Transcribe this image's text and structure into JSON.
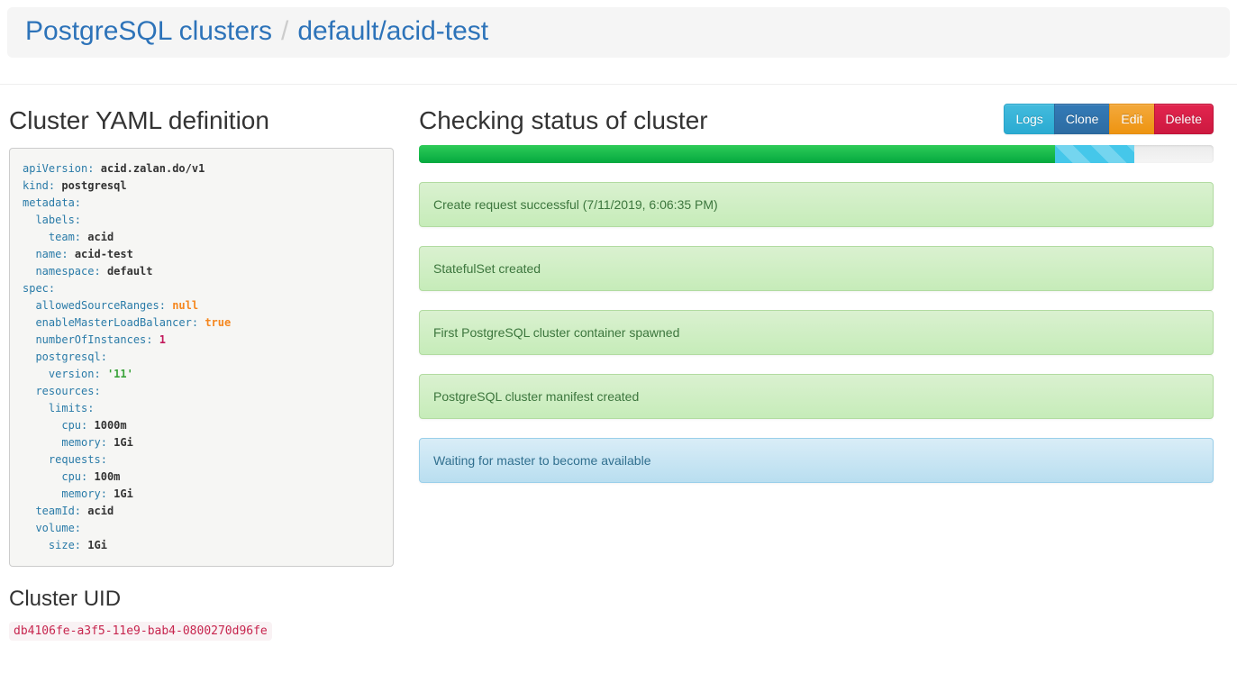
{
  "breadcrumb": {
    "root": "PostgreSQL clusters",
    "separator": "/",
    "current": "default/acid-test"
  },
  "yaml_section": {
    "title": "Cluster YAML definition",
    "lines": [
      {
        "indent": 0,
        "key": "apiVersion",
        "value": "acid.zalan.do/v1",
        "type": "plain"
      },
      {
        "indent": 0,
        "key": "kind",
        "value": "postgresql",
        "type": "plain"
      },
      {
        "indent": 0,
        "key": "metadata",
        "value": "",
        "type": "none"
      },
      {
        "indent": 1,
        "key": "labels",
        "value": "",
        "type": "none"
      },
      {
        "indent": 2,
        "key": "team",
        "value": "acid",
        "type": "plain"
      },
      {
        "indent": 1,
        "key": "name",
        "value": "acid-test",
        "type": "plain"
      },
      {
        "indent": 1,
        "key": "namespace",
        "value": "default",
        "type": "plain"
      },
      {
        "indent": 0,
        "key": "spec",
        "value": "",
        "type": "none"
      },
      {
        "indent": 1,
        "key": "allowedSourceRanges",
        "value": "null",
        "type": "keyword"
      },
      {
        "indent": 1,
        "key": "enableMasterLoadBalancer",
        "value": "true",
        "type": "keyword"
      },
      {
        "indent": 1,
        "key": "numberOfInstances",
        "value": "1",
        "type": "number"
      },
      {
        "indent": 1,
        "key": "postgresql",
        "value": "",
        "type": "none"
      },
      {
        "indent": 2,
        "key": "version",
        "value": "'11'",
        "type": "string"
      },
      {
        "indent": 1,
        "key": "resources",
        "value": "",
        "type": "none"
      },
      {
        "indent": 2,
        "key": "limits",
        "value": "",
        "type": "none"
      },
      {
        "indent": 3,
        "key": "cpu",
        "value": "1000m",
        "type": "plain"
      },
      {
        "indent": 3,
        "key": "memory",
        "value": "1Gi",
        "type": "plain"
      },
      {
        "indent": 2,
        "key": "requests",
        "value": "",
        "type": "none"
      },
      {
        "indent": 3,
        "key": "cpu",
        "value": "100m",
        "type": "plain"
      },
      {
        "indent": 3,
        "key": "memory",
        "value": "1Gi",
        "type": "plain"
      },
      {
        "indent": 1,
        "key": "teamId",
        "value": "acid",
        "type": "plain"
      },
      {
        "indent": 1,
        "key": "volume",
        "value": "",
        "type": "none"
      },
      {
        "indent": 2,
        "key": "size",
        "value": "1Gi",
        "type": "plain"
      }
    ]
  },
  "uid_section": {
    "title": "Cluster UID",
    "uid": "db4106fe-a3f5-11e9-bab4-0800270d96fe"
  },
  "status_section": {
    "title": "Checking status of cluster",
    "buttons": [
      {
        "label": "Logs",
        "style": "info"
      },
      {
        "label": "Clone",
        "style": "primary"
      },
      {
        "label": "Edit",
        "style": "warning"
      },
      {
        "label": "Delete",
        "style": "danger"
      }
    ],
    "progress": {
      "success_percent": 80,
      "active_percent": 10
    },
    "messages": [
      {
        "text": "Create request successful (7/11/2019, 6:06:35 PM)",
        "level": "success"
      },
      {
        "text": "StatefulSet created",
        "level": "success"
      },
      {
        "text": "First PostgreSQL cluster container spawned",
        "level": "success"
      },
      {
        "text": "PostgreSQL cluster manifest created",
        "level": "success"
      },
      {
        "text": "Waiting for master to become available",
        "level": "info"
      }
    ]
  },
  "colors": {
    "breadcrumb_link": "#2d73b9",
    "yaml_key": "#2a7ba8",
    "yaml_keyword": "#f5871f",
    "yaml_number": "#c2185b",
    "yaml_string": "#3aa33a",
    "progress_success": "#04a93f",
    "progress_active": "#45c7ea",
    "alert_success_text": "#3c763d",
    "alert_info_text": "#31708f",
    "uid_text": "#c7254e",
    "uid_background": "#f9f2f4",
    "btn_info": "#2aabd2",
    "btn_primary": "#337ab7",
    "btn_warning": "#ee9411",
    "btn_danger": "#cd1940"
  }
}
